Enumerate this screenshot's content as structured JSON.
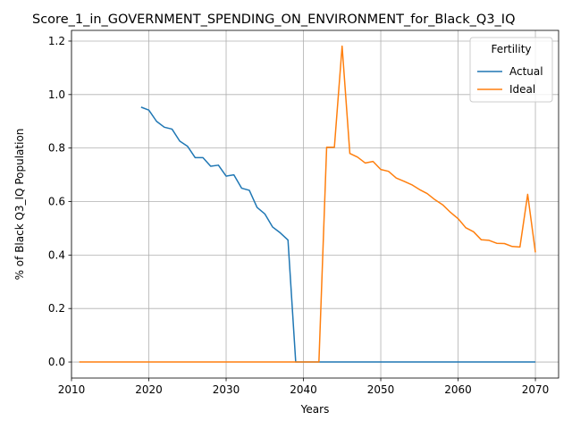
{
  "chart_data": {
    "type": "line",
    "title": "Score_1_in_GOVERNMENT_SPENDING_ON_ENVIRONMENT_for_Black_Q3_IQ",
    "xlabel": "Years",
    "ylabel": "% of Black Q3_IQ Population",
    "xlim": [
      2010,
      2073
    ],
    "ylim": [
      -0.06,
      1.24
    ],
    "xticks": [
      2010,
      2020,
      2030,
      2040,
      2050,
      2060,
      2070
    ],
    "yticks": [
      0.0,
      0.2,
      0.4,
      0.6,
      0.8,
      1.0,
      1.2
    ],
    "grid": true,
    "legend": {
      "title": "Fertility",
      "position": "top-right"
    },
    "series": [
      {
        "name": "Actual",
        "color": "#1f77b4",
        "points": [
          [
            2019,
            0.953
          ],
          [
            2020,
            0.942
          ],
          [
            2021,
            0.9
          ],
          [
            2022,
            0.878
          ],
          [
            2023,
            0.871
          ],
          [
            2024,
            0.826
          ],
          [
            2025,
            0.807
          ],
          [
            2026,
            0.764
          ],
          [
            2027,
            0.764
          ],
          [
            2028,
            0.732
          ],
          [
            2029,
            0.736
          ],
          [
            2030,
            0.695
          ],
          [
            2031,
            0.7
          ],
          [
            2032,
            0.65
          ],
          [
            2033,
            0.642
          ],
          [
            2034,
            0.578
          ],
          [
            2035,
            0.554
          ],
          [
            2036,
            0.505
          ],
          [
            2037,
            0.483
          ],
          [
            2038,
            0.456
          ],
          [
            2039,
            0.0
          ],
          [
            2040,
            0.0
          ],
          [
            2045,
            0.0
          ],
          [
            2050,
            0.0
          ],
          [
            2055,
            0.0
          ],
          [
            2060,
            0.0
          ],
          [
            2065,
            0.0
          ],
          [
            2070,
            0.0
          ]
        ]
      },
      {
        "name": "Ideal",
        "color": "#ff7f0e",
        "points": [
          [
            2011,
            0.0
          ],
          [
            2015,
            0.0
          ],
          [
            2020,
            0.0
          ],
          [
            2025,
            0.0
          ],
          [
            2030,
            0.0
          ],
          [
            2035,
            0.0
          ],
          [
            2040,
            0.0
          ],
          [
            2042,
            0.0
          ],
          [
            2043,
            0.803
          ],
          [
            2044,
            0.803
          ],
          [
            2045,
            1.181
          ],
          [
            2046,
            0.78
          ],
          [
            2047,
            0.766
          ],
          [
            2048,
            0.744
          ],
          [
            2049,
            0.75
          ],
          [
            2050,
            0.72
          ],
          [
            2051,
            0.713
          ],
          [
            2052,
            0.688
          ],
          [
            2053,
            0.676
          ],
          [
            2054,
            0.663
          ],
          [
            2055,
            0.645
          ],
          [
            2056,
            0.63
          ],
          [
            2057,
            0.607
          ],
          [
            2058,
            0.588
          ],
          [
            2059,
            0.56
          ],
          [
            2060,
            0.536
          ],
          [
            2061,
            0.502
          ],
          [
            2062,
            0.487
          ],
          [
            2063,
            0.457
          ],
          [
            2064,
            0.455
          ],
          [
            2065,
            0.444
          ],
          [
            2066,
            0.443
          ],
          [
            2067,
            0.432
          ],
          [
            2068,
            0.43
          ],
          [
            2069,
            0.627
          ],
          [
            2070,
            0.41
          ]
        ]
      }
    ]
  }
}
